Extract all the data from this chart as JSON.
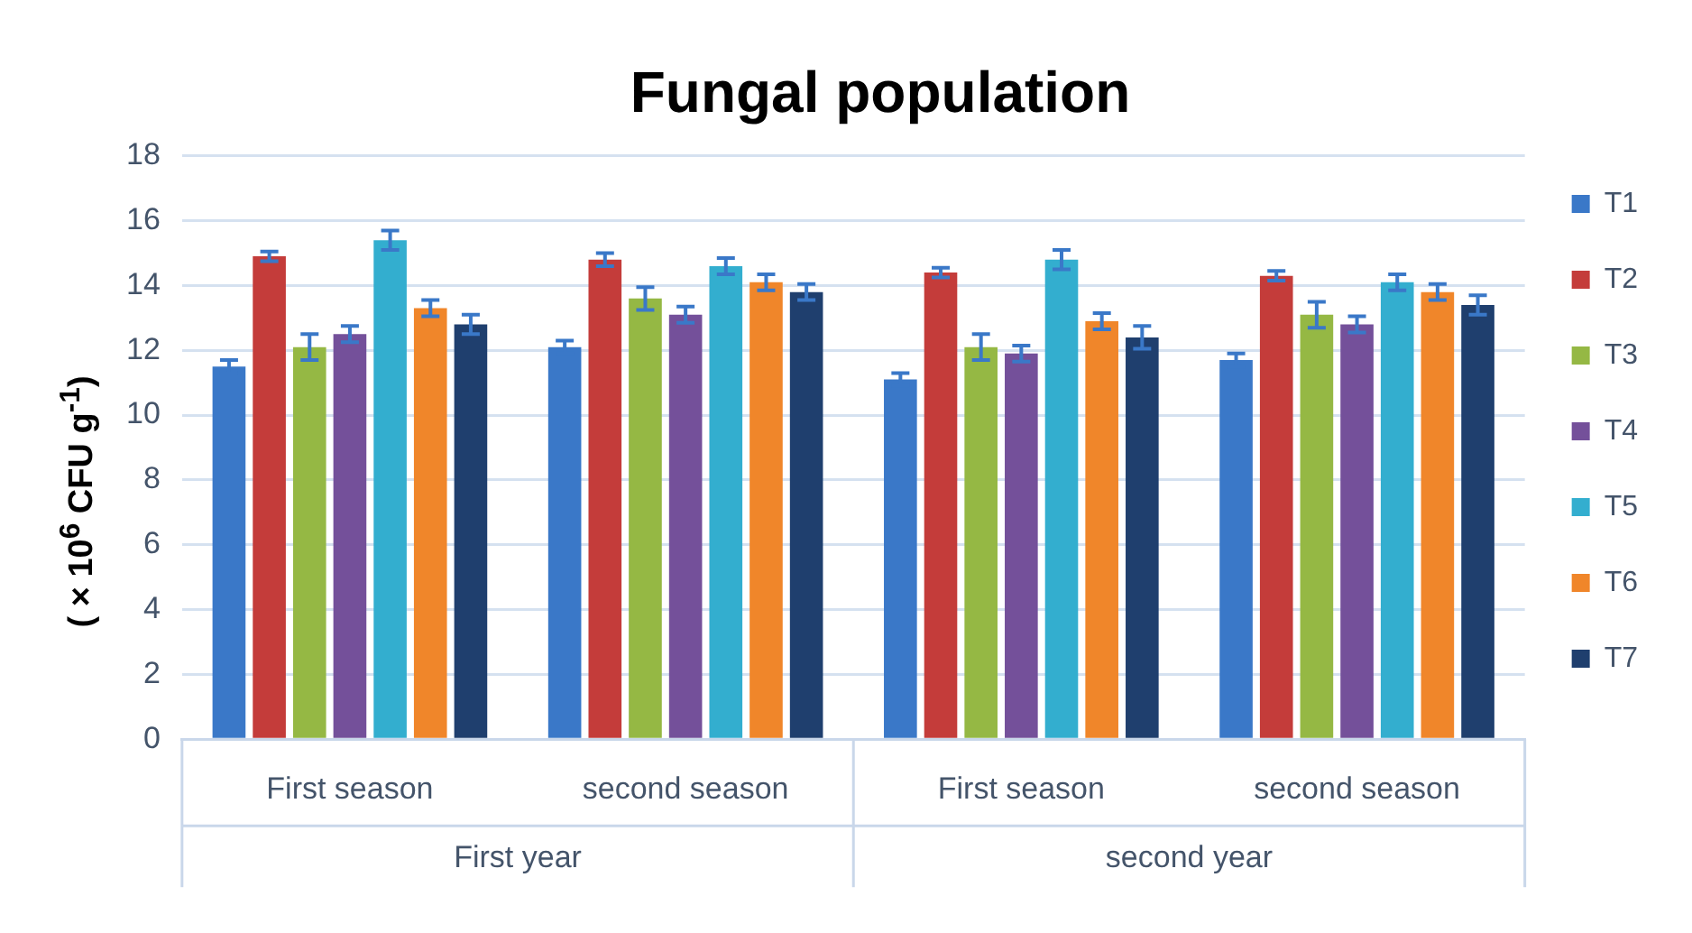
{
  "chart_data": {
    "type": "bar",
    "title": "Fungal population",
    "ylabel": "( × 10$^{6}$ CFU g$^{-1}$)",
    "categories": [
      "First season",
      "second season",
      "First season",
      "second season"
    ],
    "annotations": [
      "First year",
      "second year"
    ],
    "series": [
      {
        "name": "T1",
        "color": "#3a78c8",
        "values": [
          11.5,
          12.1,
          11.1,
          11.7
        ],
        "errors": [
          0.2,
          0.2,
          0.2,
          0.2
        ]
      },
      {
        "name": "T2",
        "color": "#c43c3a",
        "values": [
          14.9,
          14.8,
          14.4,
          14.3
        ],
        "errors": [
          0.15,
          0.2,
          0.15,
          0.15
        ]
      },
      {
        "name": "T3",
        "color": "#95b844",
        "values": [
          12.1,
          13.6,
          12.1,
          13.1
        ],
        "errors": [
          0.4,
          0.35,
          0.4,
          0.4
        ]
      },
      {
        "name": "T4",
        "color": "#74509a",
        "values": [
          12.5,
          13.1,
          11.9,
          12.8
        ],
        "errors": [
          0.25,
          0.25,
          0.25,
          0.25
        ]
      },
      {
        "name": "T5",
        "color": "#33aecf",
        "values": [
          15.4,
          14.6,
          14.8,
          14.1
        ],
        "errors": [
          0.3,
          0.25,
          0.3,
          0.25
        ]
      },
      {
        "name": "T6",
        "color": "#f0862a",
        "values": [
          13.3,
          14.1,
          12.9,
          13.8
        ],
        "errors": [
          0.25,
          0.25,
          0.25,
          0.25
        ]
      },
      {
        "name": "T7",
        "color": "#1f3f6e",
        "values": [
          12.8,
          13.8,
          12.4,
          13.4
        ],
        "errors": [
          0.3,
          0.25,
          0.35,
          0.3
        ]
      }
    ],
    "ylim": [
      0,
      18
    ],
    "yticks": [
      0,
      2,
      4,
      6,
      8,
      10,
      12,
      14,
      16,
      18
    ],
    "grid": "y",
    "legend": "right"
  }
}
